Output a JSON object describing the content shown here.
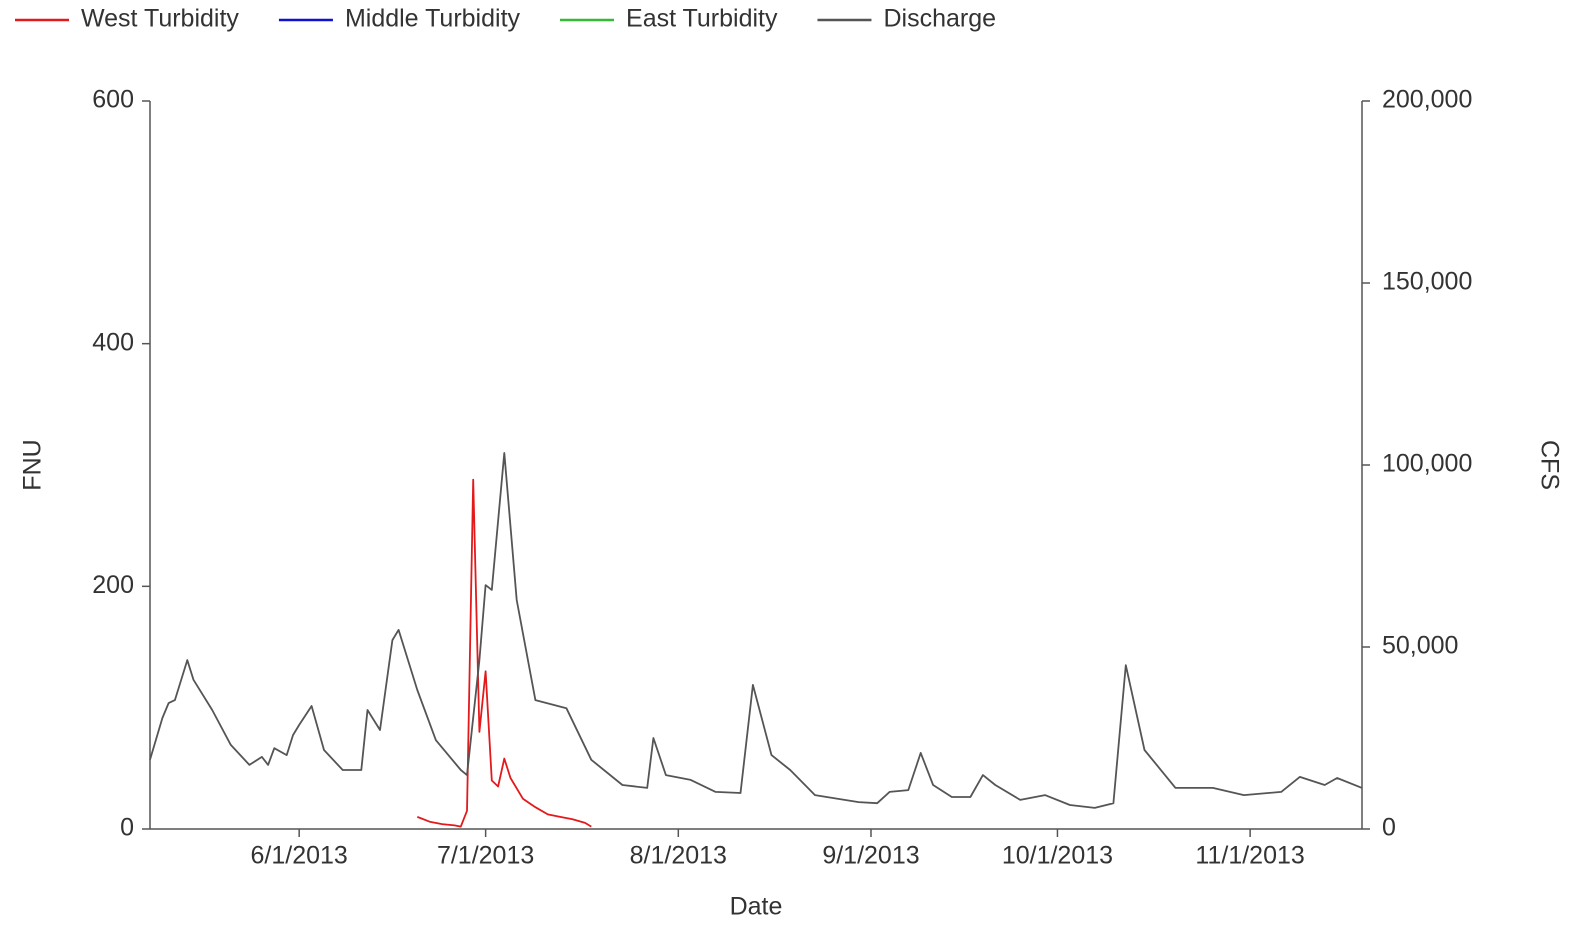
{
  "chart_data": {
    "type": "line",
    "xlabel": "Date",
    "ylabel": "FNU",
    "y2label": "CFS",
    "xlim": [
      "5/8/2013",
      "11/19/2013"
    ],
    "xticks": [
      "6/1/2013",
      "7/1/2013",
      "8/1/2013",
      "9/1/2013",
      "10/1/2013",
      "11/1/2013"
    ],
    "ylim": [
      0,
      600
    ],
    "yticks": [
      0,
      200,
      400,
      600
    ],
    "y2lim": [
      0,
      200000
    ],
    "y2ticks": [
      0,
      {
        "value": 50000,
        "label": "50,000"
      },
      {
        "value": 100000,
        "label": "100,000"
      },
      {
        "value": 150000,
        "label": "150,000"
      },
      {
        "value": 200000,
        "label": "200,000"
      }
    ],
    "legend": "top",
    "series": [
      {
        "name": "West Turbidity",
        "color": "#e31a1c",
        "x": [
          "6/20/2013",
          "6/22/2013",
          "6/24/2013",
          "6/26/2013",
          "6/27/2013",
          "6/28/2013",
          "6/29/2013",
          "6/30/2013",
          "7/1/2013",
          "7/2/2013",
          "7/3/2013",
          "7/4/2013",
          "7/5/2013",
          "7/7/2013",
          "7/9/2013",
          "7/11/2013",
          "7/13/2013",
          "7/15/2013",
          "7/17/2013",
          "7/18/2013"
        ],
        "values": [
          10,
          6,
          4,
          3,
          2,
          15,
          288,
          80,
          130,
          40,
          35,
          58,
          42,
          25,
          18,
          12,
          10,
          8,
          5,
          2
        ]
      },
      {
        "name": "Middle Turbidity",
        "color": "#1010d0",
        "x": [],
        "values": []
      },
      {
        "name": "East Turbidity",
        "color": "#33bb33",
        "x": [],
        "values": []
      },
      {
        "name": "Discharge",
        "color": "#555555",
        "axis": "y2",
        "x": [
          "5/8/2013",
          "5/10/2013",
          "5/11/2013",
          "5/12/2013",
          "5/14/2013",
          "5/15/2013",
          "5/18/2013",
          "5/21/2013",
          "5/24/2013",
          "5/26/2013",
          "5/27/2013",
          "5/28/2013",
          "5/30/2013",
          "5/31/2013",
          "6/1/2013",
          "6/3/2013",
          "6/5/2013",
          "6/8/2013",
          "6/11/2013",
          "6/12/2013",
          "6/14/2013",
          "6/16/2013",
          "6/17/2013",
          "6/20/2013",
          "6/23/2013",
          "6/27/2013",
          "6/28/2013",
          "6/30/2013",
          "7/1/2013",
          "7/2/2013",
          "7/4/2013",
          "7/6/2013",
          "7/9/2013",
          "7/14/2013",
          "7/18/2013",
          "7/23/2013",
          "7/27/2013",
          "7/28/2013",
          "7/30/2013",
          "8/3/2013",
          "8/7/2013",
          "8/11/2013",
          "8/13/2013",
          "8/16/2013",
          "8/19/2013",
          "8/23/2013",
          "8/30/2013",
          "9/2/2013",
          "9/4/2013",
          "9/7/2013",
          "9/9/2013",
          "9/11/2013",
          "9/14/2013",
          "9/17/2013",
          "9/19/2013",
          "9/21/2013",
          "9/25/2013",
          "9/29/2013",
          "10/3/2013",
          "10/7/2013",
          "10/10/2013",
          "10/12/2013",
          "10/15/2013",
          "10/20/2013",
          "10/26/2013",
          "10/31/2013",
          "11/6/2013",
          "11/9/2013",
          "11/13/2013",
          "11/15/2013",
          "11/19/2013"
        ],
        "values": [
          19000,
          30500,
          34600,
          35400,
          46400,
          41000,
          32700,
          23100,
          17600,
          19800,
          17600,
          22200,
          20300,
          25800,
          28600,
          33800,
          21700,
          16200,
          16200,
          32700,
          27200,
          51900,
          54700,
          38200,
          24400,
          16200,
          14800,
          46400,
          67000,
          65700,
          103300,
          62900,
          35400,
          33200,
          19000,
          12100,
          11300,
          25000,
          14800,
          13500,
          10200,
          9900,
          39600,
          20300,
          16200,
          9300,
          7400,
          7100,
          10200,
          10700,
          20900,
          12100,
          8800,
          8800,
          14800,
          12100,
          8000,
          9300,
          6600,
          5800,
          7100,
          45000,
          21700,
          11300,
          11300,
          9300,
          10200,
          14300,
          12100,
          14000,
          11300
        ]
      }
    ]
  }
}
